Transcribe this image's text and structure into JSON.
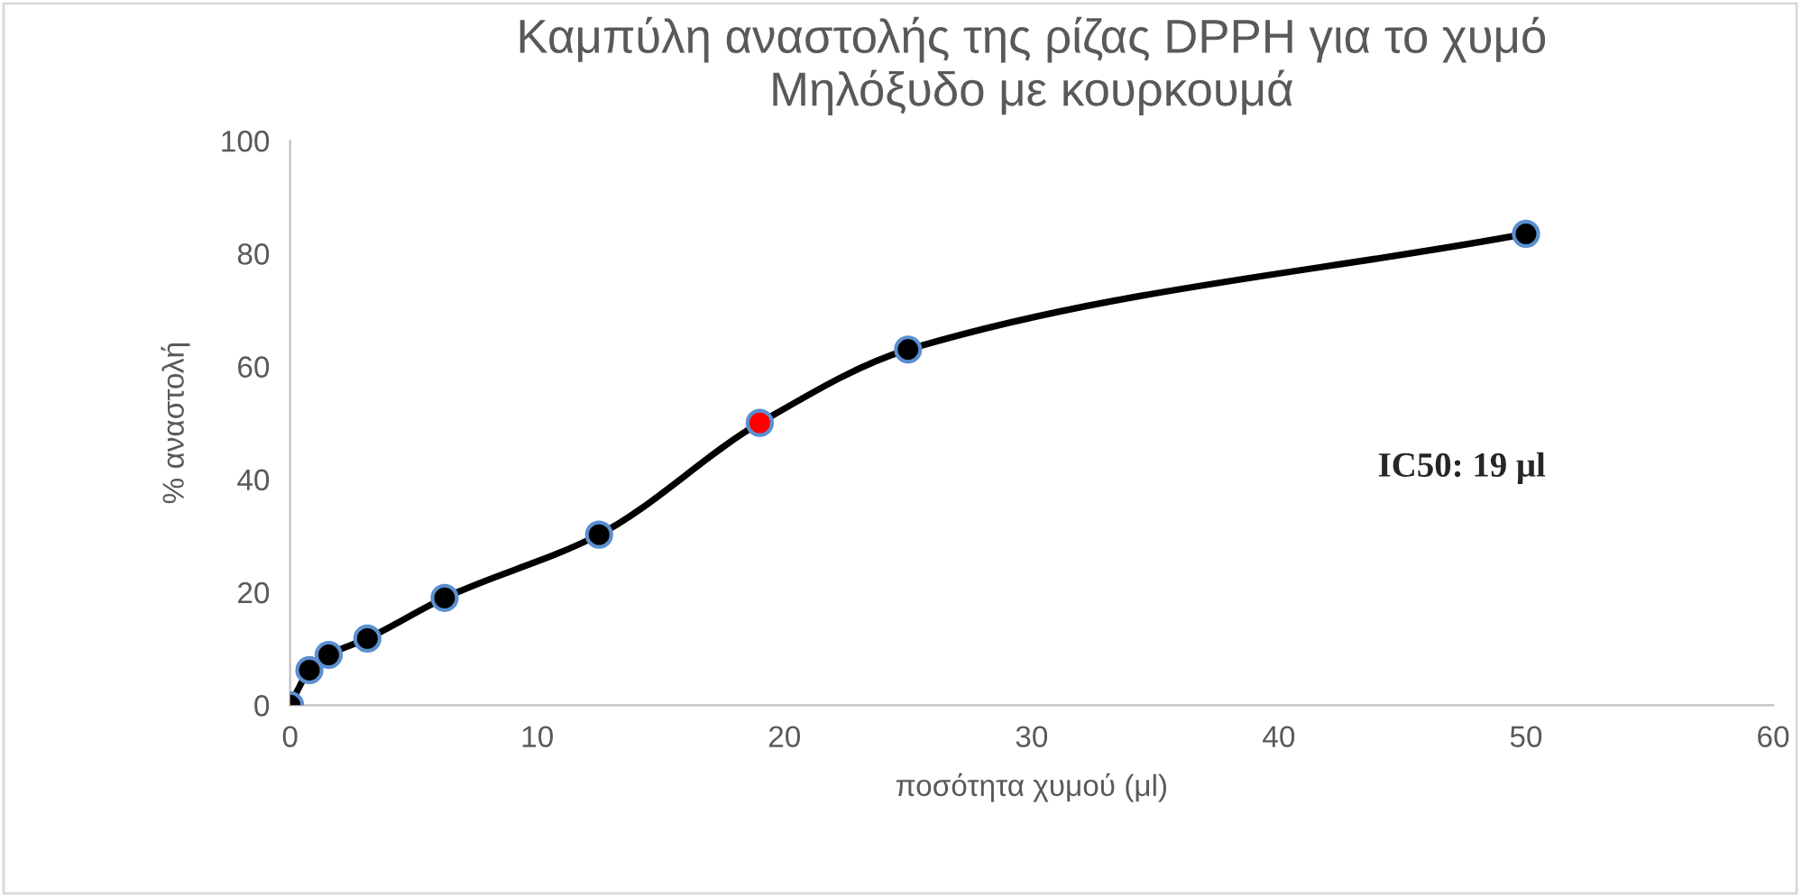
{
  "chart_data": {
    "type": "line",
    "title": "Καμπύλη αναστολής της ρίζας DPPH για το χυμό\nΜηλόξυδο με κουρκουμά",
    "xlabel": "ποσότητα χυμού (μl)",
    "ylabel": "% αναστολή",
    "x": [
      0,
      0.78,
      1.56,
      3.125,
      6.25,
      12.5,
      19,
      25,
      50
    ],
    "series": [
      {
        "color": "#000000",
        "colors": [
          "#000000",
          "#000000",
          "#000000",
          "#000000",
          "#000000",
          "#000000",
          "#ff0000",
          "#000000",
          "#000000"
        ],
        "values": [
          0,
          6.2,
          8.9,
          11.8,
          19.0,
          30.2,
          50.0,
          63.0,
          83.5
        ]
      }
    ],
    "xlim": [
      0,
      60
    ],
    "xticks": [
      0,
      10,
      20,
      30,
      40,
      50,
      60
    ],
    "ylim": [
      0,
      100
    ],
    "yticks": [
      0,
      20,
      40,
      60,
      80,
      100
    ],
    "grid": false,
    "legend": false,
    "marker": "circle",
    "line_style": "solid",
    "annotations": [
      "IC50: 19 μl"
    ]
  }
}
